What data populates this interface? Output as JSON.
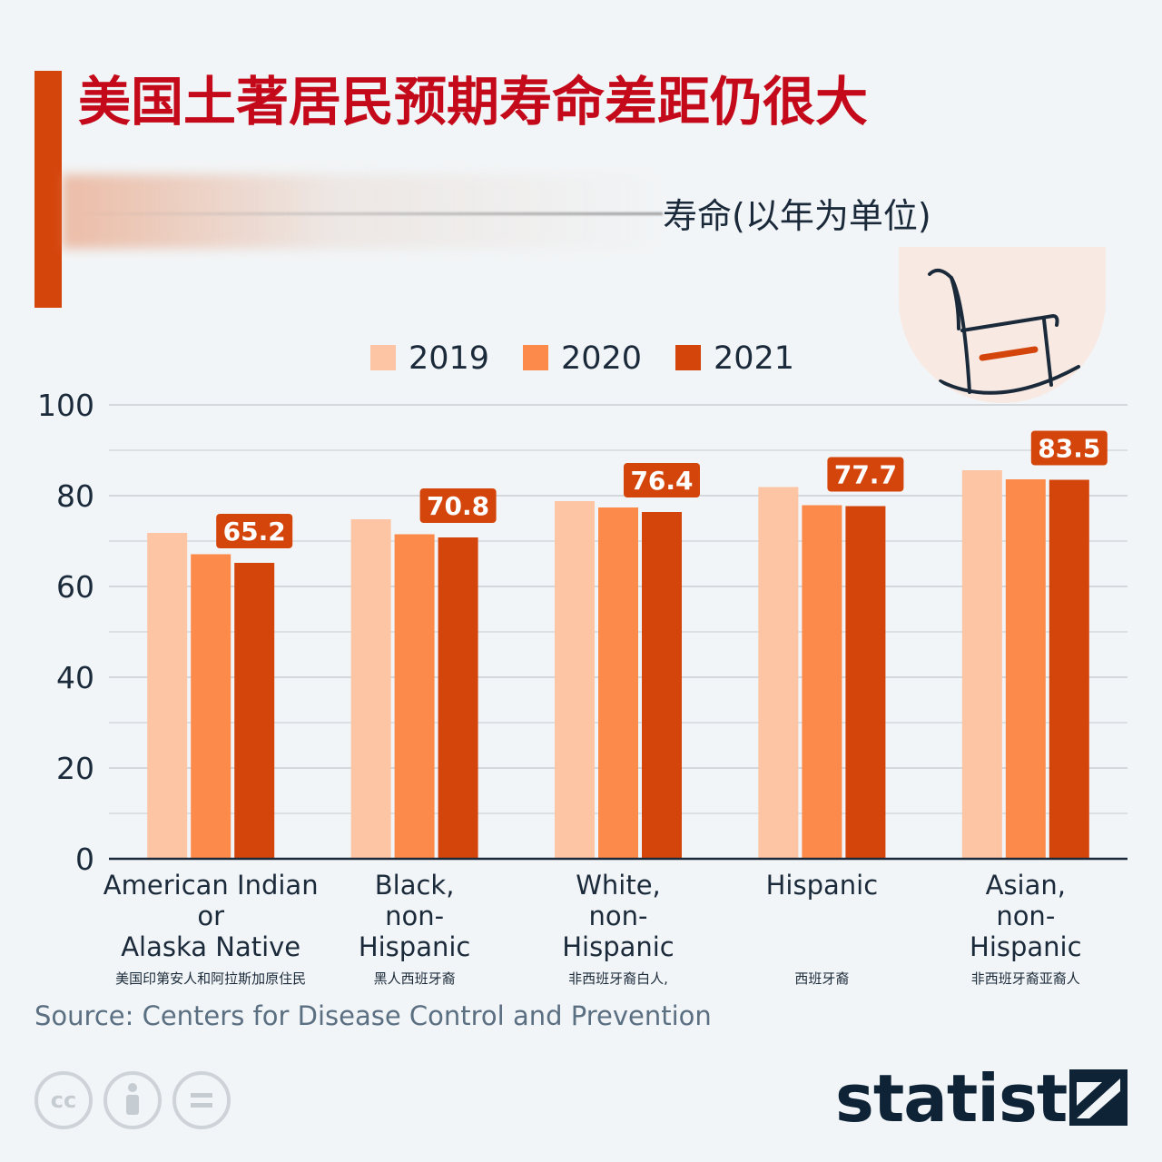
{
  "header": {
    "title": "美国土著居民预期寿命差距仍很大",
    "subtitle": "寿命(以年为单位)"
  },
  "chart_data": {
    "type": "bar",
    "categories": [
      "American Indian\nor\nAlaska Native",
      "Black,\nnon-\nHispanic",
      "White,\nnon-\nHispanic",
      "Hispanic",
      "Asian,\nnon-\nHispanic"
    ],
    "category_subtitles": [
      "美国印第安人和阿拉斯加原住民",
      "黑人西班牙裔",
      "非西班牙裔白人,",
      "西班牙裔",
      "非西班牙裔亚裔人"
    ],
    "series": [
      {
        "name": "2019",
        "color": "#fdc5a4",
        "values": [
          71.8,
          74.8,
          78.8,
          81.9,
          85.6
        ]
      },
      {
        "name": "2020",
        "color": "#fc8a4a",
        "values": [
          67.1,
          71.5,
          77.4,
          77.9,
          83.6
        ]
      },
      {
        "name": "2021",
        "color": "#d4450c",
        "values": [
          65.2,
          70.8,
          76.4,
          77.7,
          83.5
        ]
      }
    ],
    "data_labels": [
      "65.2",
      "70.8",
      "76.4",
      "77.7",
      "83.5"
    ],
    "yticks": [
      "0",
      "20",
      "40",
      "60",
      "80",
      "100"
    ],
    "ylim": [
      0,
      100
    ],
    "grid": true,
    "legend_position": "top-center"
  },
  "footer": {
    "source": "Source: Centers for Disease Control and Prevention",
    "brand": "statista",
    "license_icons": [
      "cc-icon",
      "attribution-icon",
      "no-derivatives-icon"
    ]
  }
}
